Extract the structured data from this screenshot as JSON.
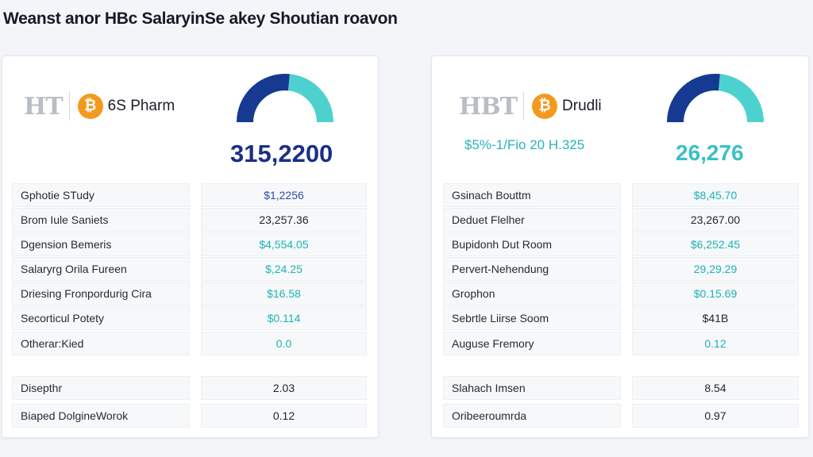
{
  "header": {
    "title": "Weanst anor HBc SalaryinSe akey Shoutian roavon"
  },
  "colors": {
    "navy": "#163a91",
    "teal": "#4dd1cf",
    "coin": "#f39a1e"
  },
  "left": {
    "brand_mark": "HT",
    "coin_icon": "bitcoin-icon",
    "brand_name": "6S Pharm",
    "gauge": {
      "primary": 0.62
    },
    "big_number": "315,2200",
    "rows": [
      {
        "label": "Gphotie STudy",
        "value": "$1,2256"
      },
      {
        "label": "Brom Iule Saniets",
        "value": "23,257.36"
      },
      {
        "label": "Dgension Bemeris",
        "value": "$4,554.05"
      },
      {
        "label": "Salaryrg Orila Fureen",
        "value": "$,24.25"
      },
      {
        "label": "Driesing Fronpordurig Cira",
        "value": "$16.58"
      },
      {
        "label": "Secorticul Potety",
        "value": "$0.114"
      },
      {
        "label": "Otherar:Kied",
        "value": "0.0"
      }
    ],
    "summary": [
      {
        "label": "Disepthr",
        "value": "2.03"
      },
      {
        "label": "Biaped DolgineWorok",
        "value": "0.12"
      }
    ]
  },
  "right": {
    "brand_mark": "HBT",
    "coin_icon": "bitcoin-icon",
    "brand_name": "Drudli",
    "gauge": {
      "primary": 0.62
    },
    "sub_value": "$5%-1/Fio 20 H.325",
    "big_number": "26,276",
    "rows": [
      {
        "label": "Gsinach Bouttm",
        "value": "$8,45.70"
      },
      {
        "label": "Deduet Flelher",
        "value": "23,267.00"
      },
      {
        "label": "Bupidonh Dut Room",
        "value": "$6,252.45"
      },
      {
        "label": "Pervert-Nehendung",
        "value": "29,29.29"
      },
      {
        "label": "Grophon",
        "value": "$0.15.69"
      },
      {
        "label": "Sebrtle Liirse Soom",
        "value": "$41B"
      },
      {
        "label": "Auguse Fremory",
        "value": "0.12"
      }
    ],
    "summary": [
      {
        "label": "Slahach Imsen",
        "value": "8.54"
      },
      {
        "label": "Oribeeroumrda",
        "value": "0.97"
      }
    ]
  }
}
